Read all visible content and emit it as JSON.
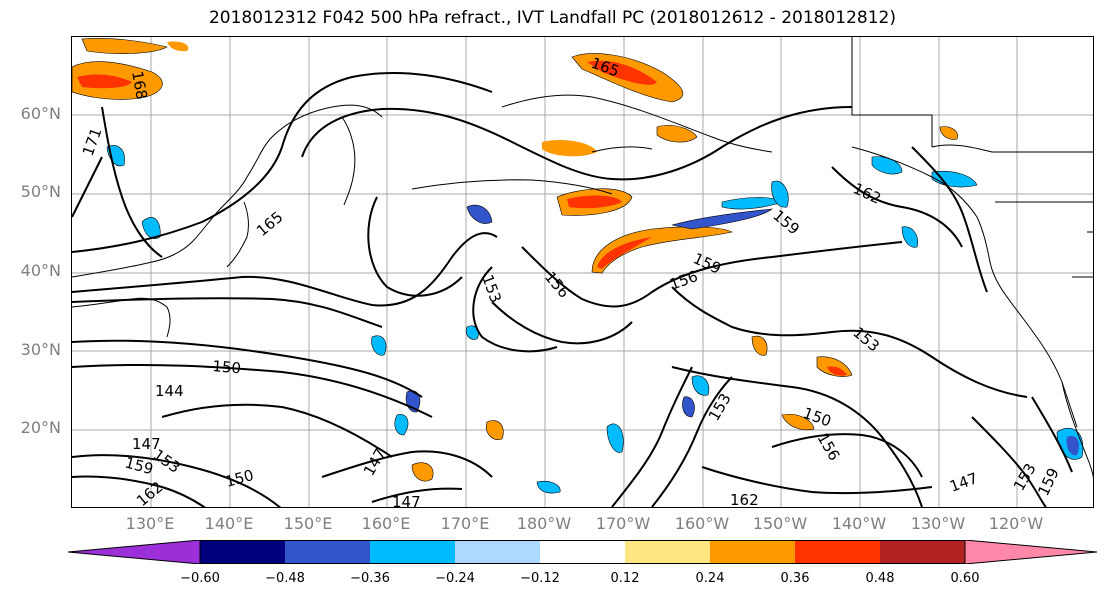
{
  "title": "2018012312 F042 500 hPa refract., IVT Landfall PC (2018012612 - 2018012812)",
  "lat_labels": [
    "60°N",
    "50°N",
    "40°N",
    "30°N",
    "20°N"
  ],
  "lon_labels": [
    "130°E",
    "140°E",
    "150°E",
    "160°E",
    "170°E",
    "180°W",
    "170°W",
    "160°W",
    "150°W",
    "140°W",
    "130°W",
    "120°W"
  ],
  "contour_labels": [
    "168",
    "171",
    "165",
    "153",
    "156",
    "159",
    "156",
    "150",
    "144",
    "147",
    "153",
    "159",
    "162",
    "150",
    "147",
    "147",
    "162",
    "153",
    "156",
    "150",
    "153",
    "159",
    "162",
    "165",
    "147",
    "153",
    "159"
  ],
  "colorbar": {
    "colors": [
      "#9b30d9",
      "#00007f",
      "#3355cc",
      "#00bbff",
      "#add8ff",
      "#ffffff",
      "#ffe680",
      "#ff9900",
      "#ff3300",
      "#b22222",
      "#ff88aa"
    ],
    "tick_labels": [
      "−0.60",
      "−0.48",
      "−0.36",
      "−0.24",
      "−0.12",
      "0.12",
      "0.24",
      "0.36",
      "0.48",
      "0.60"
    ]
  }
}
